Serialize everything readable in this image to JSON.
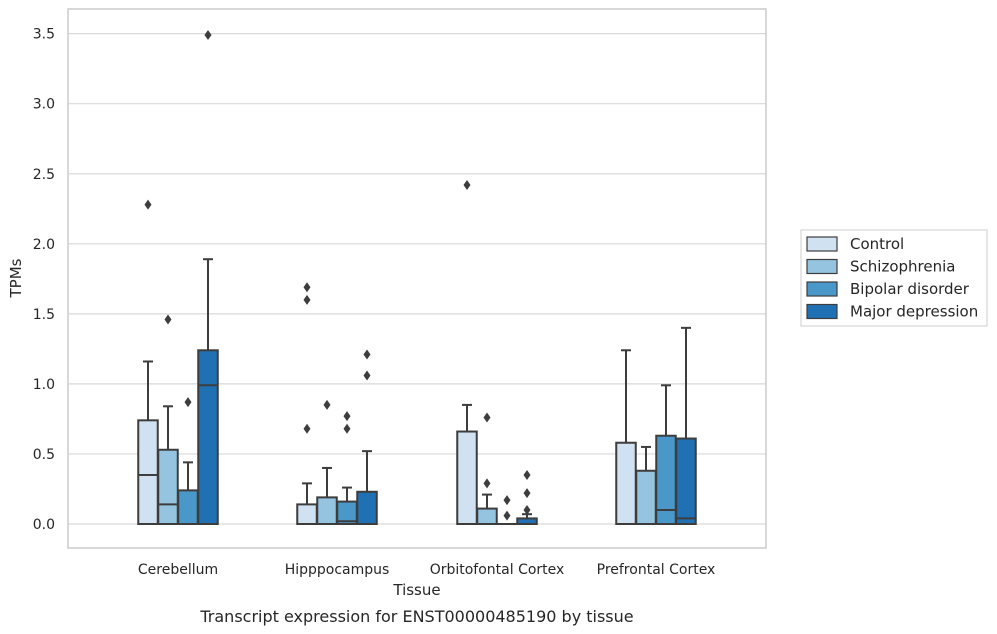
{
  "caption": "Transcript expression for ENST00000485190 by tissue",
  "chart_data": {
    "type": "box",
    "title": "",
    "xlabel": "Tissue",
    "ylabel": "TPMs",
    "ylim": [
      -0.17,
      3.67
    ],
    "yticks": [
      "0.0",
      "0.5",
      "1.0",
      "1.5",
      "2.0",
      "2.5",
      "3.0",
      "3.5"
    ],
    "grid": "horizontal",
    "legend_position": "right",
    "categories": [
      "Cerebellum",
      "Hipppocampus",
      "Orbitofontal Cortex",
      "Prefrontal Cortex"
    ],
    "series": [
      {
        "name": "Control",
        "color": "#d0e1f2",
        "boxes": [
          {
            "whislo": 0,
            "q1": 0,
            "med": 0.35,
            "q3": 0.74,
            "whishi": 1.16,
            "fliers": [
              2.28
            ]
          },
          {
            "whislo": 0,
            "q1": 0,
            "med": 0,
            "q3": 0.14,
            "whishi": 0.29,
            "fliers": [
              0.68,
              1.6,
              1.69
            ]
          },
          {
            "whislo": 0,
            "q1": 0,
            "med": 0,
            "q3": 0.66,
            "whishi": 0.85,
            "fliers": [
              2.42
            ]
          },
          {
            "whislo": 0,
            "q1": 0,
            "med": 0,
            "q3": 0.58,
            "whishi": 1.24,
            "fliers": []
          }
        ]
      },
      {
        "name": "Schizophrenia",
        "color": "#94c4df",
        "boxes": [
          {
            "whislo": 0,
            "q1": 0,
            "med": 0.14,
            "q3": 0.53,
            "whishi": 0.84,
            "fliers": [
              1.46
            ]
          },
          {
            "whislo": 0,
            "q1": 0,
            "med": 0,
            "q3": 0.19,
            "whishi": 0.4,
            "fliers": [
              0.85
            ]
          },
          {
            "whislo": 0,
            "q1": 0,
            "med": 0,
            "q3": 0.11,
            "whishi": 0.21,
            "fliers": [
              0.29,
              0.76
            ]
          },
          {
            "whislo": 0,
            "q1": 0,
            "med": 0,
            "q3": 0.38,
            "whishi": 0.55,
            "fliers": []
          }
        ]
      },
      {
        "name": "Bipolar disorder",
        "color": "#4a98c9",
        "boxes": [
          {
            "whislo": 0,
            "q1": 0,
            "med": 0,
            "q3": 0.24,
            "whishi": 0.44,
            "fliers": [
              0.87
            ]
          },
          {
            "whislo": 0,
            "q1": 0,
            "med": 0.02,
            "q3": 0.16,
            "whishi": 0.26,
            "fliers": [
              0.68,
              0.77
            ]
          },
          {
            "whislo": 0,
            "q1": 0,
            "med": 0,
            "q3": 0,
            "whishi": 0,
            "fliers": [
              0.06,
              0.17
            ]
          },
          {
            "whislo": 0,
            "q1": 0,
            "med": 0.1,
            "q3": 0.63,
            "whishi": 0.99,
            "fliers": []
          }
        ]
      },
      {
        "name": "Major depression",
        "color": "#2070b4",
        "boxes": [
          {
            "whislo": 0,
            "q1": 0,
            "med": 0.99,
            "q3": 1.24,
            "whishi": 1.89,
            "fliers": [
              3.49
            ]
          },
          {
            "whislo": 0,
            "q1": 0,
            "med": 0,
            "q3": 0.23,
            "whishi": 0.52,
            "fliers": [
              1.06,
              1.21
            ]
          },
          {
            "whislo": 0,
            "q1": 0,
            "med": 0,
            "q3": 0.04,
            "whishi": 0.07,
            "fliers": [
              0.1,
              0.22,
              0.35
            ]
          },
          {
            "whislo": 0,
            "q1": 0,
            "med": 0.04,
            "q3": 0.61,
            "whishi": 1.4,
            "fliers": []
          }
        ]
      }
    ]
  }
}
